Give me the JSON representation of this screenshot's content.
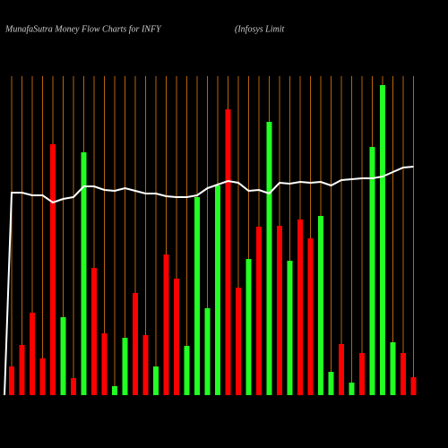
{
  "chart_data": {
    "type": "bar",
    "title": "MunafaSutra  Money Flow  Charts for INFY",
    "subtitle": "(Infosys Limit",
    "ylim": [
      0,
      360
    ],
    "values": [
      32,
      56,
      92,
      41,
      280,
      87,
      19,
      271,
      142,
      69,
      10,
      64,
      114,
      67,
      32,
      157,
      130,
      55,
      221,
      97,
      234,
      319,
      120,
      152,
      188,
      305,
      189,
      150,
      196,
      175,
      200,
      26,
      57,
      14,
      47,
      277,
      346,
      59,
      47,
      20
    ],
    "colors": [
      "#ff0000",
      "#ff0000",
      "#ff0000",
      "#ff0000",
      "#ff0000",
      "#22ff22",
      "#ff0000",
      "#22ff22",
      "#ff0000",
      "#ff0000",
      "#22ff22",
      "#22ff22",
      "#ff0000",
      "#ff0000",
      "#22ff22",
      "#ff0000",
      "#ff0000",
      "#22ff22",
      "#22ff22",
      "#22ff22",
      "#22ff22",
      "#ff0000",
      "#ff0000",
      "#22ff22",
      "#ff0000",
      "#22ff22",
      "#ff0000",
      "#22ff22",
      "#ff0000",
      "#ff0000",
      "#22ff22",
      "#22ff22",
      "#ff0000",
      "#22ff22",
      "#ff0000",
      "#22ff22",
      "#22ff22",
      "#22ff22",
      "#ff0000",
      "#ff0000"
    ],
    "line": {
      "color": "#ffffff",
      "values": [
        226,
        226,
        223,
        223,
        215,
        219,
        221,
        233,
        233,
        229,
        228,
        231,
        228,
        225,
        225,
        222,
        221,
        221,
        223,
        231,
        235,
        239,
        237,
        228,
        229,
        225,
        237,
        236,
        238,
        237,
        238,
        234,
        240,
        241,
        242,
        242,
        244,
        249,
        254,
        255
      ]
    },
    "gridcolor": "#b8640a"
  }
}
